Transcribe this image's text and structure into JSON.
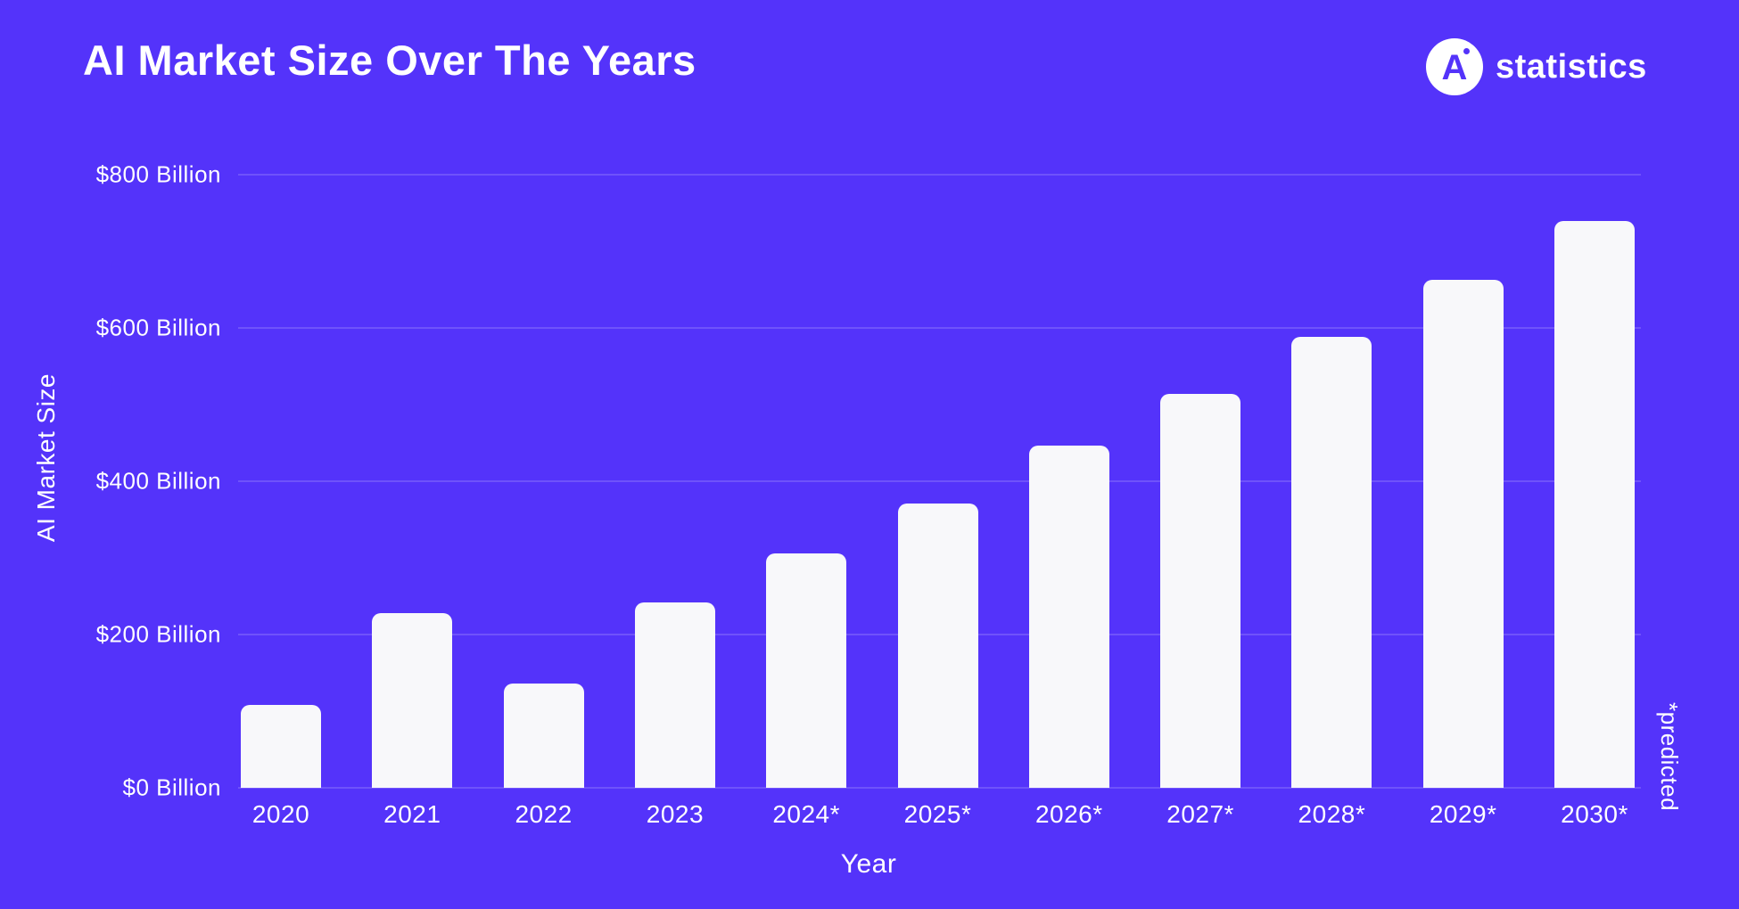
{
  "page": {
    "background_color": "#5433FA",
    "text_color": "#FFFFFF"
  },
  "header": {
    "title": "AI Market Size Over The Years",
    "logo": {
      "monogram": "A",
      "text": "statistics",
      "circle_color": "#FFFFFF",
      "monogram_color": "#5433FA"
    }
  },
  "chart_data": {
    "type": "bar",
    "title": "AI Market Size Over The Years",
    "unit": "USD Billion",
    "categories": [
      "2020",
      "2021",
      "2022",
      "2023",
      "2024*",
      "2025*",
      "2026*",
      "2027*",
      "2028*",
      "2029*",
      "2030*"
    ],
    "values": [
      108,
      228,
      136,
      242,
      306,
      371,
      447,
      514,
      588,
      663,
      740
    ],
    "xlabel": "Year",
    "ylabel": "AI Market Size",
    "ylim": [
      0,
      800
    ],
    "ytick_values": [
      0,
      200,
      400,
      600,
      800
    ],
    "ytick_labels": [
      "$0 Billion",
      "$200 Billion",
      "$400 Billion",
      "$600 Billion",
      "$800 Billion"
    ],
    "grid": true,
    "legend_position": "none",
    "annotation": "*predicted",
    "bar_color": "#F8F8FA",
    "gridline_color": "rgba(255,255,255,0.16)"
  }
}
